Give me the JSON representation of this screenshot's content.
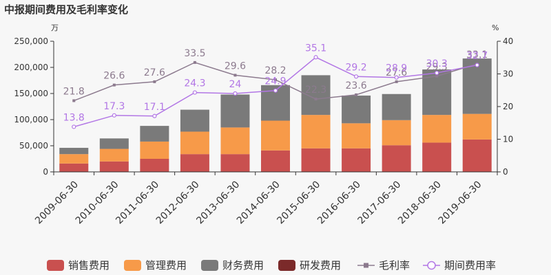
{
  "chart_data": {
    "type": "bar",
    "title": "中报期间费用及毛利率变化",
    "y_left_unit": "万",
    "y_right_unit": "%",
    "ylim_left": [
      0,
      250000
    ],
    "ylim_right": [
      0,
      40
    ],
    "yticks_left": [
      "0",
      "50,000",
      "100,000",
      "150,000",
      "200,000",
      "250,000"
    ],
    "yticks_right": [
      "0",
      "10",
      "20",
      "30",
      "40"
    ],
    "grid": false,
    "legend_position": "bottom",
    "categories": [
      "2009-06-30",
      "2010-06-30",
      "2011-06-30",
      "2012-06-30",
      "2013-06-30",
      "2014-06-30",
      "2015-06-30",
      "2016-06-30",
      "2017-06-30",
      "2018-06-30",
      "2019-06-30"
    ],
    "series": [
      {
        "name": "销售费用",
        "kind": "bar",
        "color": "#c9504f",
        "values": [
          16000,
          20000,
          25000,
          34000,
          34000,
          41000,
          45000,
          45000,
          51000,
          56000,
          62000
        ]
      },
      {
        "name": "管理费用",
        "kind": "bar",
        "color": "#f79a49",
        "values": [
          18000,
          24000,
          33000,
          43000,
          51000,
          57000,
          64000,
          48000,
          48000,
          53000,
          49000
        ]
      },
      {
        "name": "财务费用",
        "kind": "bar",
        "color": "#7a7a7a",
        "values": [
          12000,
          20000,
          30000,
          42000,
          63000,
          68000,
          76000,
          53000,
          50000,
          87000,
          106000
        ]
      },
      {
        "name": "研发费用",
        "kind": "bar",
        "color": "#7b2a2a",
        "values": [
          0,
          0,
          0,
          0,
          0,
          0,
          0,
          0,
          0,
          0,
          0
        ]
      },
      {
        "name": "毛利率",
        "kind": "line",
        "axis": "right",
        "color": "#8c7a8e",
        "values": [
          21.8,
          26.6,
          27.6,
          33.5,
          29.6,
          28.2,
          22.3,
          23.6,
          27.6,
          29.3,
          33.1
        ]
      },
      {
        "name": "期间费用率",
        "kind": "line",
        "axis": "right",
        "color": "#b276e5",
        "values": [
          13.8,
          17.3,
          17.1,
          24.3,
          24.0,
          24.9,
          35.1,
          29.2,
          28.9,
          30.3,
          32.7
        ]
      }
    ]
  }
}
